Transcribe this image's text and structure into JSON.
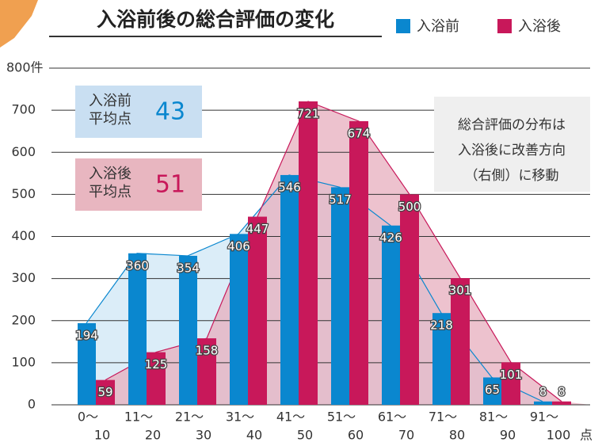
{
  "chart_data": {
    "type": "bar",
    "title": "入浴前後の総合評価の変化",
    "categories": [
      [
        "0～",
        "10"
      ],
      [
        "11～",
        "20"
      ],
      [
        "21～",
        "30"
      ],
      [
        "31～",
        "40"
      ],
      [
        "41～",
        "50"
      ],
      [
        "51～",
        "60"
      ],
      [
        "61～",
        "70"
      ],
      [
        "71～",
        "80"
      ],
      [
        "81～",
        "90"
      ],
      [
        "91～",
        "100"
      ]
    ],
    "x_label": "点",
    "series": [
      {
        "name": "入浴前",
        "color": "#0a87cf",
        "area_color": "#d7ebf7",
        "values": [
          194,
          360,
          354,
          406,
          546,
          517,
          426,
          218,
          65,
          8
        ]
      },
      {
        "name": "入浴後",
        "color": "#c8185a",
        "area_color": "#e7aebe",
        "values": [
          59,
          125,
          158,
          447,
          721,
          674,
          500,
          301,
          101,
          8
        ]
      }
    ],
    "ylim": [
      0,
      800
    ],
    "yticks": [
      0,
      100,
      200,
      300,
      400,
      500,
      600,
      700,
      {
        "value": 800,
        "label": "800件"
      }
    ],
    "grid": true,
    "annotations": [
      {
        "lines": [
          "入浴前",
          "平均点"
        ],
        "value": "43"
      },
      {
        "lines": [
          "入浴後",
          "平均点"
        ],
        "value": "51"
      },
      {
        "lines": [
          "総合評価の分布は",
          "入浴後に改善方向",
          "（右側）に移動"
        ]
      }
    ]
  }
}
